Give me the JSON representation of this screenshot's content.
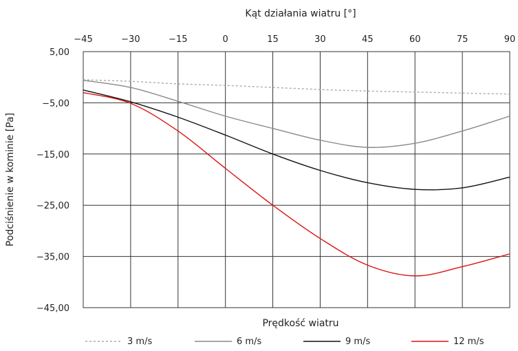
{
  "chart_data": {
    "type": "line",
    "title": "",
    "x_top_label": "Kąt działania wiatru [°]",
    "xlabel": "Prędkość wiatru",
    "ylabel": "Podciśnienie w kominie [Pa]",
    "x_ticks": [
      -45,
      -30,
      -15,
      0,
      15,
      30,
      45,
      60,
      75,
      90
    ],
    "y_ticks": [
      "5,00",
      "-5,00",
      "-15,00",
      "-25,00",
      "-35,00",
      "-45,00"
    ],
    "xlim": [
      -45,
      90
    ],
    "ylim": [
      -45,
      5
    ],
    "grid": true,
    "legend_position": "bottom",
    "x": [
      -45,
      -30,
      -15,
      0,
      15,
      30,
      45,
      60,
      75,
      90
    ],
    "series": [
      {
        "name": "3 m/s",
        "color": "#aaaaaa",
        "dash": "dashed",
        "values": [
          -0.5,
          -0.8,
          -1.3,
          -1.6,
          -2.0,
          -2.4,
          -2.7,
          -2.9,
          -3.1,
          -3.3
        ]
      },
      {
        "name": "6 m/s",
        "color": "#888888",
        "dash": "solid",
        "values": [
          -0.6,
          -2.0,
          -4.7,
          -7.6,
          -10.0,
          -12.3,
          -13.7,
          -12.9,
          -10.5,
          -7.6
        ]
      },
      {
        "name": "9 m/s",
        "color": "#111111",
        "dash": "solid",
        "values": [
          -2.5,
          -4.8,
          -7.8,
          -11.3,
          -15.0,
          -18.2,
          -20.6,
          -21.9,
          -21.6,
          -19.5
        ]
      },
      {
        "name": "12 m/s",
        "color": "#dd1111",
        "dash": "solid",
        "values": [
          -3.0,
          -5.1,
          -10.5,
          -17.8,
          -25.0,
          -31.5,
          -36.7,
          -38.8,
          -37.0,
          -34.5
        ]
      }
    ]
  }
}
